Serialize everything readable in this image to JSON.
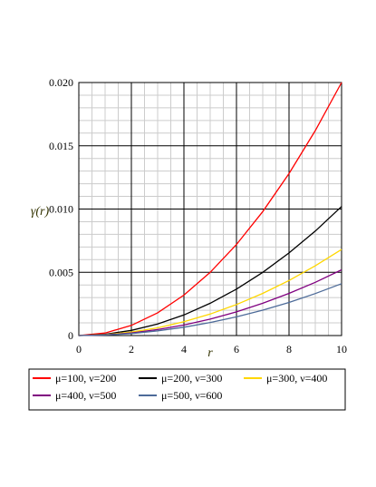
{
  "chart_data": {
    "type": "line",
    "xlabel": "r",
    "ylabel": "γ(r)",
    "xlim": [
      0,
      10
    ],
    "ylim": [
      0,
      0.02
    ],
    "x_ticks": [
      "0",
      "2",
      "4",
      "6",
      "8",
      "10"
    ],
    "y_ticks": [
      "0",
      "0.005",
      "0.010",
      "0.015",
      "0.020"
    ],
    "grid": true,
    "legend_position": "bottom",
    "x": [
      0,
      1,
      2,
      3,
      4,
      5,
      6,
      7,
      8,
      9,
      10
    ],
    "series": [
      {
        "name": "μ=100, ν=200",
        "color": "#ff0000",
        "values": [
          0,
          0.0002,
          0.0008,
          0.0018,
          0.0032,
          0.005,
          0.0072,
          0.0098,
          0.0128,
          0.0162,
          0.02
        ]
      },
      {
        "name": "μ=200, ν=300",
        "color": "#000000",
        "values": [
          0,
          0.0001,
          0.00041,
          0.00092,
          0.00163,
          0.00255,
          0.00367,
          0.005,
          0.00653,
          0.00826,
          0.0102
        ]
      },
      {
        "name": "μ=300, ν=400",
        "color": "#ffd700",
        "values": [
          0,
          7e-05,
          0.00027,
          0.00061,
          0.00109,
          0.0017,
          0.00245,
          0.00333,
          0.00435,
          0.00551,
          0.0068
        ]
      },
      {
        "name": "μ=400, ν=500",
        "color": "#800080",
        "values": [
          0,
          5e-05,
          0.00021,
          0.00047,
          0.00083,
          0.0013,
          0.00187,
          0.00255,
          0.00333,
          0.00421,
          0.0052
        ]
      },
      {
        "name": "μ=500, ν=600",
        "color": "#4d6b99",
        "values": [
          0,
          4e-05,
          0.00016,
          0.00037,
          0.00066,
          0.00103,
          0.00148,
          0.00201,
          0.00262,
          0.00332,
          0.0041
        ]
      }
    ]
  }
}
